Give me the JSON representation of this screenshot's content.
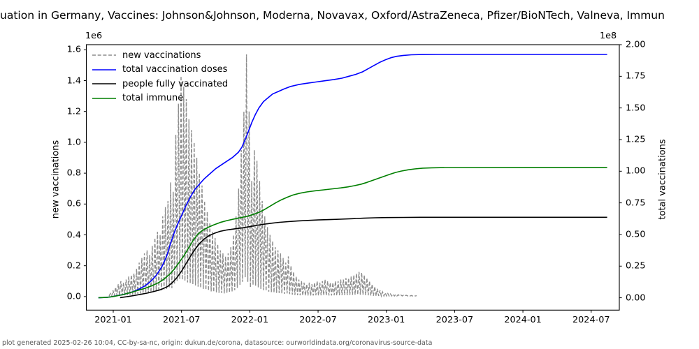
{
  "title": {
    "visible_text": "uation in Germany, Vaccines: Johnson&Johnson, Moderna, Novavax, Oxford/AstraZeneca, Pfizer/BioNTech, Valneva, Immun",
    "note": "title is clipped at both left and right image edges"
  },
  "footer": {
    "text": "plot generated 2025-02-26 10:04, CC-by-sa-nc, origin: dukun.de/corona, datasource: ourworldindata.org/coronavirus-source-data"
  },
  "axes": {
    "left": {
      "label": "new vaccinations",
      "offset_text": "1e6",
      "tick_labels": [
        "0.0",
        "0.2",
        "0.4",
        "0.6",
        "0.8",
        "1.0",
        "1.2",
        "1.4",
        "1.6"
      ],
      "tick_values": [
        0,
        0.2,
        0.4,
        0.6,
        0.8,
        1.0,
        1.2,
        1.4,
        1.6
      ],
      "unit_scale": "1e6"
    },
    "right": {
      "label": "total vaccinations",
      "offset_text": "1e8",
      "tick_labels": [
        "0.00",
        "0.25",
        "0.50",
        "0.75",
        "1.00",
        "1.25",
        "1.50",
        "1.75",
        "2.00"
      ],
      "tick_values": [
        0,
        0.25,
        0.5,
        0.75,
        1.0,
        1.25,
        1.5,
        1.75,
        2.0
      ],
      "unit_scale": "1e8"
    },
    "x": {
      "tick_labels": [
        "2021-01",
        "2021-07",
        "2022-01",
        "2022-07",
        "2023-01",
        "2023-07",
        "2024-01",
        "2024-07"
      ],
      "tick_values": [
        0,
        6,
        12,
        18,
        24,
        30,
        36,
        42
      ],
      "unit": "months since 2021-01"
    }
  },
  "legend": {
    "items": [
      {
        "label": "new vaccinations",
        "color": "#8c8c8c",
        "style": "dashed"
      },
      {
        "label": "total vaccination doses",
        "color": "#0000ff",
        "style": "solid"
      },
      {
        "label": "people fully vaccinated",
        "color": "#000000",
        "style": "solid"
      },
      {
        "label": "total immune",
        "color": "#007f00",
        "style": "solid"
      }
    ]
  },
  "chart_data": {
    "type": "line",
    "x_unit": "months since 2021-01",
    "xlim_months": [
      -2.4,
      44.5
    ],
    "left_ylim": [
      -0.086,
      1.633
    ],
    "right_ylim": [
      -0.096,
      2.0
    ],
    "grid": false,
    "legend_position": "upper left, frameless",
    "series": [
      {
        "id": "new_vaccinations",
        "name": "new vaccinations",
        "axis": "left",
        "color": "#8c8c8c",
        "style": "dashed",
        "description": "daily new vaccinations (1e6), strong weekly oscillation down to near zero on weekends; values below are weekly peak envelope",
        "start_m": -0.25,
        "week_step_m": 0.23,
        "trough_ratio": 0.08,
        "weekly_peaks_1e6": [
          0.02,
          0.04,
          0.06,
          0.08,
          0.1,
          0.09,
          0.11,
          0.13,
          0.14,
          0.15,
          0.18,
          0.22,
          0.25,
          0.28,
          0.3,
          0.27,
          0.33,
          0.38,
          0.42,
          0.4,
          0.52,
          0.58,
          0.62,
          0.74,
          0.68,
          1.05,
          1.25,
          1.43,
          1.36,
          1.28,
          1.15,
          1.08,
          1.0,
          0.9,
          0.8,
          0.72,
          0.62,
          0.55,
          0.48,
          0.42,
          0.38,
          0.34,
          0.3,
          0.28,
          0.26,
          0.28,
          0.32,
          0.4,
          0.52,
          0.7,
          0.95,
          1.2,
          1.57,
          1.2,
          0.75,
          0.95,
          0.88,
          0.75,
          0.62,
          0.52,
          0.45,
          0.4,
          0.36,
          0.32,
          0.3,
          0.28,
          0.25,
          0.22,
          0.26,
          0.2,
          0.16,
          0.13,
          0.11,
          0.1,
          0.09,
          0.08,
          0.09,
          0.08,
          0.09,
          0.1,
          0.09,
          0.1,
          0.11,
          0.1,
          0.09,
          0.09,
          0.1,
          0.1,
          0.11,
          0.11,
          0.12,
          0.12,
          0.13,
          0.14,
          0.15,
          0.16,
          0.155,
          0.14,
          0.12,
          0.1,
          0.08,
          0.065,
          0.05,
          0.04,
          0.03,
          0.025,
          0.02,
          0.017,
          0.015,
          0.013,
          0.012,
          0.01,
          0.009,
          0.009,
          0.008,
          0.007,
          0.007,
          0.006
        ]
      },
      {
        "id": "total_vaccination_doses",
        "name": "total vaccination doses",
        "axis": "right",
        "color": "#0000ff",
        "style": "solid",
        "points_m_value_1e8": [
          [
            -1.3,
            0
          ],
          [
            -0.6,
            0.003
          ],
          [
            -0.1,
            0.008
          ],
          [
            0.3,
            0.016
          ],
          [
            0.8,
            0.024
          ],
          [
            1.3,
            0.036
          ],
          [
            1.8,
            0.05
          ],
          [
            2.3,
            0.07
          ],
          [
            2.8,
            0.095
          ],
          [
            3.3,
            0.13
          ],
          [
            3.8,
            0.18
          ],
          [
            4.3,
            0.25
          ],
          [
            4.7,
            0.33
          ],
          [
            5.0,
            0.42
          ],
          [
            5.3,
            0.5
          ],
          [
            5.6,
            0.57
          ],
          [
            6.0,
            0.65
          ],
          [
            6.4,
            0.73
          ],
          [
            6.8,
            0.8
          ],
          [
            7.2,
            0.86
          ],
          [
            7.6,
            0.9
          ],
          [
            8.0,
            0.94
          ],
          [
            8.5,
            0.98
          ],
          [
            9.0,
            1.02
          ],
          [
            9.5,
            1.05
          ],
          [
            10.0,
            1.08
          ],
          [
            10.5,
            1.11
          ],
          [
            11.0,
            1.15
          ],
          [
            11.3,
            1.19
          ],
          [
            11.6,
            1.25
          ],
          [
            11.9,
            1.32
          ],
          [
            12.2,
            1.39
          ],
          [
            12.5,
            1.45
          ],
          [
            12.8,
            1.5
          ],
          [
            13.2,
            1.55
          ],
          [
            13.6,
            1.58
          ],
          [
            14.0,
            1.61
          ],
          [
            14.5,
            1.63
          ],
          [
            15.0,
            1.65
          ],
          [
            15.6,
            1.67
          ],
          [
            16.3,
            1.685
          ],
          [
            17.0,
            1.695
          ],
          [
            17.8,
            1.705
          ],
          [
            18.6,
            1.715
          ],
          [
            19.4,
            1.725
          ],
          [
            20.1,
            1.735
          ],
          [
            20.7,
            1.75
          ],
          [
            21.3,
            1.765
          ],
          [
            21.9,
            1.785
          ],
          [
            22.4,
            1.81
          ],
          [
            22.9,
            1.835
          ],
          [
            23.4,
            1.86
          ],
          [
            23.9,
            1.88
          ],
          [
            24.4,
            1.897
          ],
          [
            24.9,
            1.908
          ],
          [
            25.5,
            1.915
          ],
          [
            26.2,
            1.92
          ],
          [
            27.2,
            1.922
          ],
          [
            28.5,
            1.923
          ],
          [
            43.4,
            1.923
          ]
        ]
      },
      {
        "id": "people_fully_vaccinated",
        "name": "people fully vaccinated",
        "axis": "right",
        "color": "#000000",
        "style": "solid",
        "points_m_value_1e8": [
          [
            0.6,
            0.001
          ],
          [
            1.2,
            0.008
          ],
          [
            1.8,
            0.017
          ],
          [
            2.4,
            0.027
          ],
          [
            3.0,
            0.037
          ],
          [
            3.6,
            0.05
          ],
          [
            4.2,
            0.065
          ],
          [
            4.8,
            0.09
          ],
          [
            5.2,
            0.12
          ],
          [
            5.6,
            0.16
          ],
          [
            6.0,
            0.21
          ],
          [
            6.4,
            0.27
          ],
          [
            6.8,
            0.33
          ],
          [
            7.2,
            0.385
          ],
          [
            7.6,
            0.43
          ],
          [
            8.0,
            0.465
          ],
          [
            8.4,
            0.49
          ],
          [
            8.9,
            0.51
          ],
          [
            9.4,
            0.525
          ],
          [
            10.0,
            0.536
          ],
          [
            10.7,
            0.545
          ],
          [
            11.4,
            0.553
          ],
          [
            12.0,
            0.562
          ],
          [
            12.6,
            0.572
          ],
          [
            13.2,
            0.581
          ],
          [
            13.9,
            0.589
          ],
          [
            14.6,
            0.596
          ],
          [
            15.4,
            0.602
          ],
          [
            16.2,
            0.607
          ],
          [
            17.1,
            0.611
          ],
          [
            18.0,
            0.615
          ],
          [
            19.0,
            0.618
          ],
          [
            20.0,
            0.621
          ],
          [
            21.0,
            0.625
          ],
          [
            22.0,
            0.629
          ],
          [
            23.0,
            0.632
          ],
          [
            24.0,
            0.634
          ],
          [
            25.5,
            0.635
          ],
          [
            27.0,
            0.636
          ],
          [
            43.4,
            0.636
          ]
        ]
      },
      {
        "id": "total_immune",
        "name": "total immune",
        "axis": "right",
        "color": "#007f00",
        "style": "solid",
        "points_m_value_1e8": [
          [
            -1.3,
            0
          ],
          [
            -0.5,
            0.004
          ],
          [
            0,
            0.01
          ],
          [
            0.7,
            0.022
          ],
          [
            1.4,
            0.038
          ],
          [
            2.1,
            0.056
          ],
          [
            2.8,
            0.075
          ],
          [
            3.4,
            0.095
          ],
          [
            4.0,
            0.12
          ],
          [
            4.5,
            0.15
          ],
          [
            5.0,
            0.19
          ],
          [
            5.4,
            0.23
          ],
          [
            5.8,
            0.28
          ],
          [
            6.2,
            0.33
          ],
          [
            6.6,
            0.39
          ],
          [
            7.0,
            0.45
          ],
          [
            7.4,
            0.5
          ],
          [
            7.8,
            0.53
          ],
          [
            8.3,
            0.555
          ],
          [
            8.8,
            0.575
          ],
          [
            9.4,
            0.595
          ],
          [
            10.0,
            0.61
          ],
          [
            10.6,
            0.622
          ],
          [
            11.2,
            0.633
          ],
          [
            11.8,
            0.645
          ],
          [
            12.3,
            0.658
          ],
          [
            12.8,
            0.675
          ],
          [
            13.3,
            0.698
          ],
          [
            13.8,
            0.725
          ],
          [
            14.3,
            0.752
          ],
          [
            14.8,
            0.775
          ],
          [
            15.3,
            0.795
          ],
          [
            15.8,
            0.812
          ],
          [
            16.4,
            0.826
          ],
          [
            17.0,
            0.836
          ],
          [
            17.7,
            0.845
          ],
          [
            18.5,
            0.853
          ],
          [
            19.3,
            0.861
          ],
          [
            20.0,
            0.868
          ],
          [
            20.6,
            0.876
          ],
          [
            21.2,
            0.886
          ],
          [
            21.8,
            0.898
          ],
          [
            22.3,
            0.912
          ],
          [
            22.8,
            0.928
          ],
          [
            23.3,
            0.944
          ],
          [
            23.8,
            0.96
          ],
          [
            24.3,
            0.976
          ],
          [
            24.8,
            0.99
          ],
          [
            25.3,
            1.001
          ],
          [
            25.9,
            1.011
          ],
          [
            26.5,
            1.018
          ],
          [
            27.2,
            1.024
          ],
          [
            28.0,
            1.027
          ],
          [
            29.5,
            1.029
          ],
          [
            43.4,
            1.03
          ]
        ]
      }
    ]
  }
}
